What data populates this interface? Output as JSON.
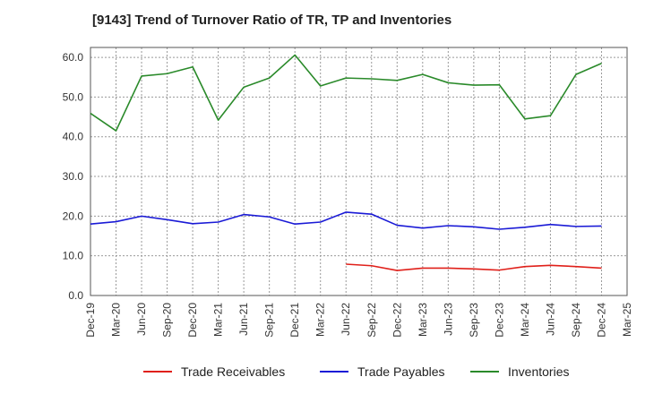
{
  "chart_data": {
    "type": "line",
    "title": "[9143]  Trend of Turnover Ratio of TR, TP and Inventories",
    "xlabel": "",
    "ylabel": "",
    "ylim": [
      0,
      62.5
    ],
    "yticks": [
      "0.0",
      "10.0",
      "20.0",
      "30.0",
      "40.0",
      "50.0",
      "60.0"
    ],
    "x": [
      "Dec-19",
      "Mar-20",
      "Jun-20",
      "Sep-20",
      "Dec-20",
      "Mar-21",
      "Jun-21",
      "Sep-21",
      "Dec-21",
      "Mar-22",
      "Jun-22",
      "Sep-22",
      "Dec-22",
      "Mar-23",
      "Jun-23",
      "Sep-23",
      "Dec-23",
      "Mar-24",
      "Jun-24",
      "Sep-24",
      "Dec-24",
      "Mar-25"
    ],
    "grid": true,
    "legend_position": "bottom",
    "series": [
      {
        "name": "Trade Receivables",
        "color": "#e0201a",
        "values": [
          null,
          null,
          null,
          null,
          null,
          null,
          null,
          null,
          null,
          null,
          7.9,
          7.5,
          6.3,
          6.9,
          6.9,
          6.7,
          6.4,
          7.3,
          7.6,
          7.3,
          6.9,
          null
        ]
      },
      {
        "name": "Trade Payables",
        "color": "#1a1ad6",
        "values": [
          18.0,
          18.6,
          20.0,
          19.1,
          18.1,
          18.5,
          20.4,
          19.8,
          18.0,
          18.5,
          21.0,
          20.5,
          17.7,
          17.0,
          17.6,
          17.3,
          16.7,
          17.2,
          17.9,
          17.4,
          17.5,
          null
        ]
      },
      {
        "name": "Inventories",
        "color": "#2a8a2a",
        "values": [
          45.9,
          41.5,
          55.3,
          55.9,
          57.6,
          44.2,
          52.5,
          54.8,
          60.6,
          52.8,
          54.8,
          54.6,
          54.2,
          55.7,
          53.6,
          53.0,
          53.1,
          44.5,
          45.3,
          55.7,
          58.5,
          null
        ]
      }
    ]
  }
}
